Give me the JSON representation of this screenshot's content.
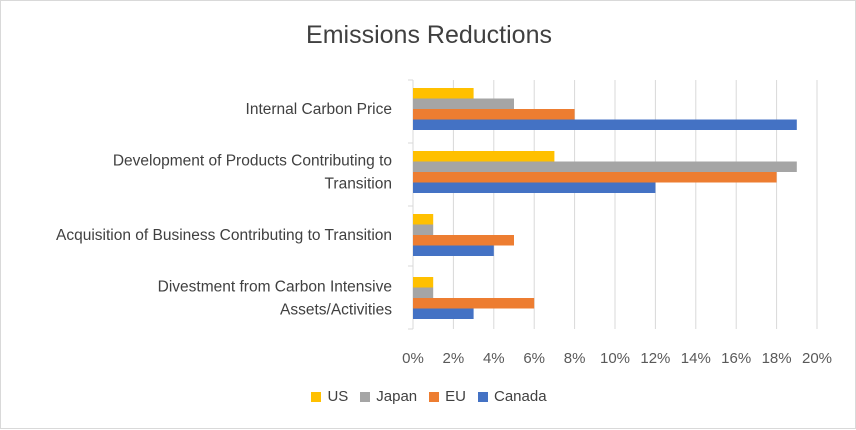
{
  "chart_data": {
    "type": "bar",
    "orientation": "horizontal",
    "title": "Emissions Reductions",
    "categories": [
      [
        "Internal Carbon Price"
      ],
      [
        "Development of Products Contributing to",
        "Transition"
      ],
      [
        "Acquisition of Business Contributing to Transition"
      ],
      [
        "Divestment from Carbon Intensive",
        "Assets/Activities"
      ]
    ],
    "series": [
      {
        "name": "US",
        "color": "#FFC000",
        "values": [
          3,
          7,
          1,
          1
        ]
      },
      {
        "name": "Japan",
        "color": "#A5A5A5",
        "values": [
          5,
          19,
          1,
          1
        ]
      },
      {
        "name": "EU",
        "color": "#ED7D31",
        "values": [
          8,
          18,
          5,
          6
        ]
      },
      {
        "name": "Canada",
        "color": "#4472C4",
        "values": [
          19,
          12,
          4,
          3
        ]
      }
    ],
    "xlim": [
      0,
      20
    ],
    "xticks": [
      "0%",
      "2%",
      "4%",
      "6%",
      "8%",
      "10%",
      "12%",
      "14%",
      "16%",
      "18%",
      "20%"
    ],
    "grid": true,
    "legend_position": "bottom"
  }
}
